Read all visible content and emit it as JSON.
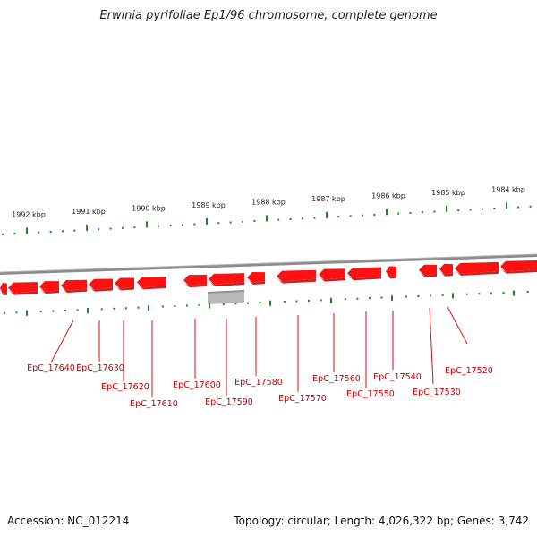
{
  "title": "Erwinia pyrifoliae Ep1/96 chromosome, complete genome",
  "footer": {
    "accession_label": "Accession:",
    "accession_value": "NC_012214",
    "summary": "Topology: circular; Length: 4,026,322 bp; Genes: 3,742"
  },
  "colors": {
    "gene": "#ff1111",
    "gene_shadow": "#b00000",
    "backbone": "#8c8c8c",
    "tick": "#1a8a1a",
    "leader": "#dd1111",
    "label": "#cc0000",
    "feature_gray": "#b8b8b8"
  },
  "scale_labels": [
    "1992 kbp",
    "1991 kbp",
    "1990 kbp",
    "1989 kbp",
    "1988 kbp",
    "1987 kbp",
    "1986 kbp",
    "1985 kbp",
    "1984 kbp"
  ],
  "genes": [
    {
      "label": "EpC_17640"
    },
    {
      "label": "EpC_17630"
    },
    {
      "label": "EpC_17620"
    },
    {
      "label": "EpC_17610"
    },
    {
      "label": "EpC_17600"
    },
    {
      "label": "EpC_17590"
    },
    {
      "label": "EpC_17580"
    },
    {
      "label": "EpC_17570"
    },
    {
      "label": "EpC_17560"
    },
    {
      "label": "EpC_17550"
    },
    {
      "label": "EpC_17540"
    },
    {
      "label": "EpC_17530"
    },
    {
      "label": "EpC_17520"
    }
  ]
}
